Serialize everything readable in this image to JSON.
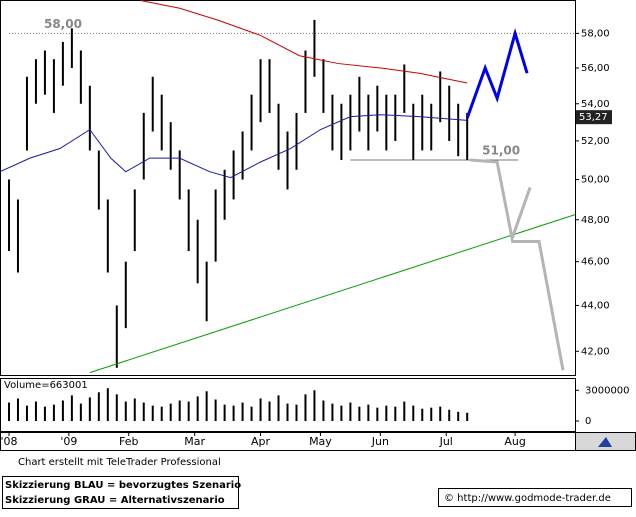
{
  "chart_data": [
    {
      "type": "hilo",
      "color": "#000000",
      "scale": "log",
      "xlim": [
        0,
        192
      ],
      "ylim": [
        41,
        60
      ],
      "x": [
        0,
        3,
        6,
        9,
        12,
        15,
        18,
        21,
        24,
        27,
        30,
        33,
        36,
        39,
        42,
        45,
        48,
        51,
        54,
        57,
        60,
        63,
        66,
        69,
        72,
        75,
        78,
        81,
        84,
        87,
        90,
        93,
        96,
        99,
        102,
        105,
        108,
        111,
        114,
        117,
        120,
        123,
        126,
        129,
        132,
        135,
        138,
        141,
        144,
        147,
        150,
        153,
        156
      ],
      "high": [
        51.5,
        50,
        49,
        55.5,
        56.5,
        57,
        56.5,
        57.5,
        58.3,
        57,
        55,
        51.5,
        49,
        44,
        46,
        49.5,
        53.5,
        55.5,
        54.5,
        53,
        51.5,
        49.5,
        48,
        46,
        49.5,
        50.5,
        51.5,
        52.5,
        54.5,
        56.5,
        56.5,
        54,
        52.5,
        53.5,
        57,
        58.8,
        56.5,
        54.5,
        54,
        54.5,
        55.5,
        54.5,
        55,
        54.5,
        54.5,
        56.2,
        54,
        54.5,
        54,
        55.8,
        55,
        54,
        53.5
      ],
      "low": [
        49.5,
        46.5,
        45.5,
        51.5,
        54,
        54.5,
        53.5,
        55,
        56,
        54,
        51.5,
        48.5,
        45.5,
        41.3,
        43,
        46.5,
        50,
        52.5,
        51.5,
        50.5,
        49,
        46.5,
        45,
        43.3,
        46,
        48,
        49,
        50,
        51.5,
        53,
        53.5,
        50.5,
        49.5,
        50.5,
        53.5,
        55.5,
        53.5,
        51.5,
        51,
        51.5,
        52.5,
        51.5,
        52.5,
        51.5,
        52,
        53.5,
        51,
        51.5,
        51.5,
        53,
        52,
        51.2,
        51
      ],
      "yticks": [
        {
          "value": 42,
          "label": "42,00"
        },
        {
          "value": 44,
          "label": "44,00"
        },
        {
          "value": 46,
          "label": "46,00"
        },
        {
          "value": 48,
          "label": "48,00"
        },
        {
          "value": 50,
          "label": "50,00"
        },
        {
          "value": 52,
          "label": "52,00"
        },
        {
          "value": 54,
          "label": "54,00"
        },
        {
          "value": 56,
          "label": "56,00"
        },
        {
          "value": 58,
          "label": "58,00"
        }
      ],
      "levels": [
        {
          "value": 58,
          "label": "58,00",
          "from": 3,
          "to": 192
        },
        {
          "value": 51,
          "label": "51,00",
          "from": 117,
          "to": 173
        }
      ],
      "last": {
        "value": 53.27,
        "label": "53,27"
      },
      "lines": [
        {
          "color": "#cc0000",
          "width": 1,
          "x": [
            47,
            60,
            73,
            87,
            100,
            113,
            127,
            140,
            156
          ],
          "values": [
            59.97,
            59.5,
            58.77,
            57.88,
            56.7,
            56.25,
            56.0,
            55.7,
            55.15
          ]
        },
        {
          "color": "#1a1aa0",
          "width": 1,
          "x": [
            0,
            10,
            20,
            30,
            37,
            42,
            50,
            60,
            70,
            77,
            87,
            97,
            107,
            117,
            127,
            140,
            156
          ],
          "values": [
            50.4,
            51.1,
            51.6,
            52.6,
            51.1,
            50.4,
            51.1,
            51.1,
            50.4,
            50.1,
            50.9,
            51.6,
            52.6,
            53.3,
            53.4,
            53.3,
            53.1
          ]
        },
        {
          "color": "#00a000",
          "width": 1,
          "x": [
            30,
            192
          ],
          "values": [
            41.1,
            48.25
          ]
        },
        {
          "color": "#0000ee",
          "width": 3,
          "x": [
            156,
            162,
            166,
            172,
            176
          ],
          "values": [
            53.22,
            56.0,
            54.3,
            58.0,
            55.7
          ]
        },
        {
          "color": "#b4b4b4",
          "width": 3,
          "x": [
            157,
            166,
            171,
            177
          ],
          "values": [
            51.0,
            50.9,
            47.1,
            49.6
          ]
        },
        {
          "color": "#b4b4b4",
          "width": 3,
          "x": [
            171,
            180,
            188
          ],
          "values": [
            46.95,
            46.95,
            41.2
          ]
        }
      ]
    },
    {
      "type": "bar",
      "color": "#000000",
      "title": "Volume=663001",
      "ylim": [
        0,
        4100000
      ],
      "yticks": [
        0,
        3000000
      ],
      "values": [
        1200000,
        1800000,
        2200000,
        1500000,
        1900000,
        1400000,
        1600000,
        2000000,
        2500000,
        1700000,
        2300000,
        2800000,
        3200000,
        2600000,
        1900000,
        2200000,
        1800000,
        1500000,
        1400000,
        1700000,
        2000000,
        1900000,
        2400000,
        2900000,
        2100000,
        1600000,
        1500000,
        1800000,
        1400000,
        2200000,
        1900000,
        2500000,
        1700000,
        1600000,
        2600000,
        3000000,
        2000000,
        1700000,
        1500000,
        1800000,
        1400000,
        1600000,
        1300000,
        1500000,
        1400000,
        1900000,
        1500000,
        1200000,
        1300000,
        1400000,
        1100000,
        900000,
        800000
      ],
      "xticks": [
        {
          "value": 3,
          "label": "'08"
        },
        {
          "value": 23,
          "label": "'09"
        },
        {
          "value": 43,
          "label": "Feb"
        },
        {
          "value": 65,
          "label": "Mar"
        },
        {
          "value": 87,
          "label": "Apr"
        },
        {
          "value": 107,
          "label": "May"
        },
        {
          "value": 127,
          "label": "Jun"
        },
        {
          "value": 149,
          "label": "Jul"
        },
        {
          "value": 172,
          "label": "Aug"
        }
      ]
    }
  ],
  "footer": {
    "credit": "Chart erstellt mit TeleTrader Professional",
    "legend_blue": "Skizzierung BLAU = bevorzugtes Szenario",
    "legend_gray": "Skizzierung GRAU = Alternativszenario",
    "source": "© http://www.godmode-trader.de"
  }
}
